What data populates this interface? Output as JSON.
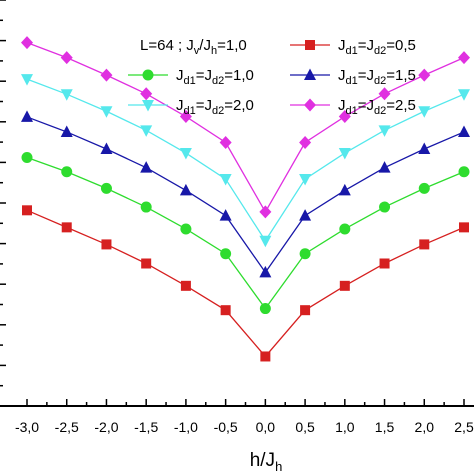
{
  "chart_data": {
    "type": "line",
    "title": "",
    "xlabel": {
      "main": "h/J",
      "sub": "h"
    },
    "ylabel": "",
    "xlim": [
      -3.0,
      2.5
    ],
    "ylim": [
      0.0,
      1.0
    ],
    "grid": false,
    "x": [
      -3.0,
      -2.5,
      -2.0,
      -1.5,
      -1.0,
      -0.5,
      0.0,
      0.5,
      1.0,
      1.5,
      2.0,
      2.5
    ],
    "x_tick_labels": [
      "-3,0",
      "-2,5",
      "-2,0",
      "-1,5",
      "-1,0",
      "-0,5",
      "0,0",
      "0,5",
      "1,0",
      "1,5",
      "2,0",
      "2,5"
    ],
    "legend": {
      "placement": "top-right",
      "header": [
        {
          "t": "L=64 ; J",
          "sub": false
        },
        {
          "t": "v",
          "sub": true
        },
        {
          "t": "/J",
          "sub": false
        },
        {
          "t": "h",
          "sub": true
        },
        {
          "t": "=1,0",
          "sub": false
        }
      ]
    },
    "series": [
      {
        "label": [
          {
            "t": "J",
            "sub": false
          },
          {
            "t": "d1",
            "sub": true
          },
          {
            "t": "=J",
            "sub": false
          },
          {
            "t": "d2",
            "sub": true
          },
          {
            "t": "=0,5",
            "sub": false
          }
        ],
        "color": "#d62020",
        "marker": "square",
        "values": [
          0.482,
          0.44,
          0.398,
          0.351,
          0.296,
          0.236,
          0.122,
          0.236,
          0.296,
          0.351,
          0.398,
          0.44
        ]
      },
      {
        "label": [
          {
            "t": "J",
            "sub": false
          },
          {
            "t": "d1",
            "sub": true
          },
          {
            "t": "=J",
            "sub": false
          },
          {
            "t": "d2",
            "sub": true
          },
          {
            "t": "=1,0",
            "sub": false
          }
        ],
        "color": "#2edc2e",
        "marker": "circle",
        "values": [
          0.612,
          0.577,
          0.536,
          0.49,
          0.436,
          0.375,
          0.24,
          0.375,
          0.436,
          0.49,
          0.536,
          0.577
        ]
      },
      {
        "label": [
          {
            "t": "J",
            "sub": false
          },
          {
            "t": "d1",
            "sub": true
          },
          {
            "t": "=J",
            "sub": false
          },
          {
            "t": "d2",
            "sub": true
          },
          {
            "t": "=1,5",
            "sub": false
          }
        ],
        "color": "#1818a8",
        "marker": "triangle-up",
        "values": [
          0.712,
          0.675,
          0.633,
          0.587,
          0.531,
          0.469,
          0.329,
          0.469,
          0.531,
          0.587,
          0.633,
          0.675
        ]
      },
      {
        "label": [
          {
            "t": "J",
            "sub": false
          },
          {
            "t": "d1",
            "sub": true
          },
          {
            "t": "=J",
            "sub": false
          },
          {
            "t": "d2",
            "sub": true
          },
          {
            "t": "=2,0",
            "sub": false
          }
        ],
        "color": "#55e8ec",
        "marker": "triangle-down",
        "values": [
          0.805,
          0.768,
          0.726,
          0.679,
          0.623,
          0.559,
          0.407,
          0.559,
          0.623,
          0.679,
          0.726,
          0.768
        ]
      },
      {
        "label": [
          {
            "t": "J",
            "sub": false
          },
          {
            "t": "d1",
            "sub": true
          },
          {
            "t": "=J",
            "sub": false
          },
          {
            "t": "d2",
            "sub": true
          },
          {
            "t": "=2,5",
            "sub": false
          }
        ],
        "color": "#e030e0",
        "marker": "diamond",
        "values": [
          0.895,
          0.858,
          0.815,
          0.769,
          0.713,
          0.649,
          0.478,
          0.649,
          0.713,
          0.769,
          0.815,
          0.858
        ]
      }
    ]
  }
}
